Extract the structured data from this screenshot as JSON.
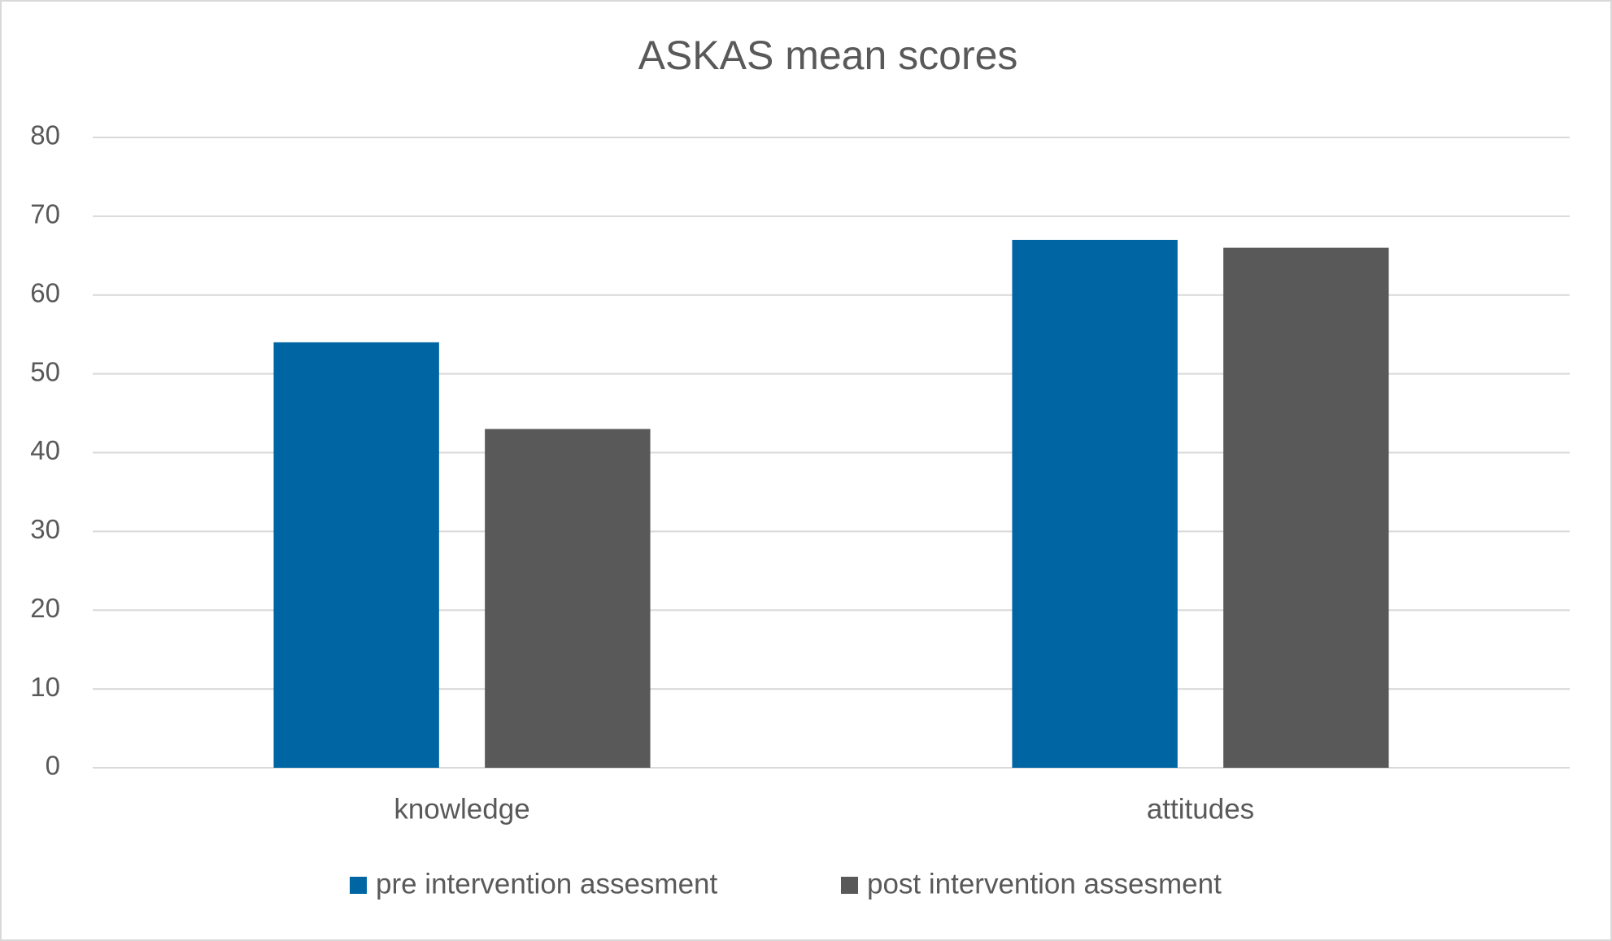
{
  "chart_data": {
    "type": "bar",
    "title": "ASKAS mean scores",
    "categories": [
      "knowledge",
      "attitudes"
    ],
    "series": [
      {
        "name": "pre intervention assesment",
        "color": "#0065a3",
        "values": [
          54,
          67
        ]
      },
      {
        "name": "post intervention assesment",
        "color": "#595959",
        "values": [
          43,
          66
        ]
      }
    ],
    "ylim": [
      0,
      80
    ],
    "yticks": [
      0,
      10,
      20,
      30,
      40,
      50,
      60,
      70,
      80
    ],
    "grid": true,
    "legend": "bottom"
  }
}
